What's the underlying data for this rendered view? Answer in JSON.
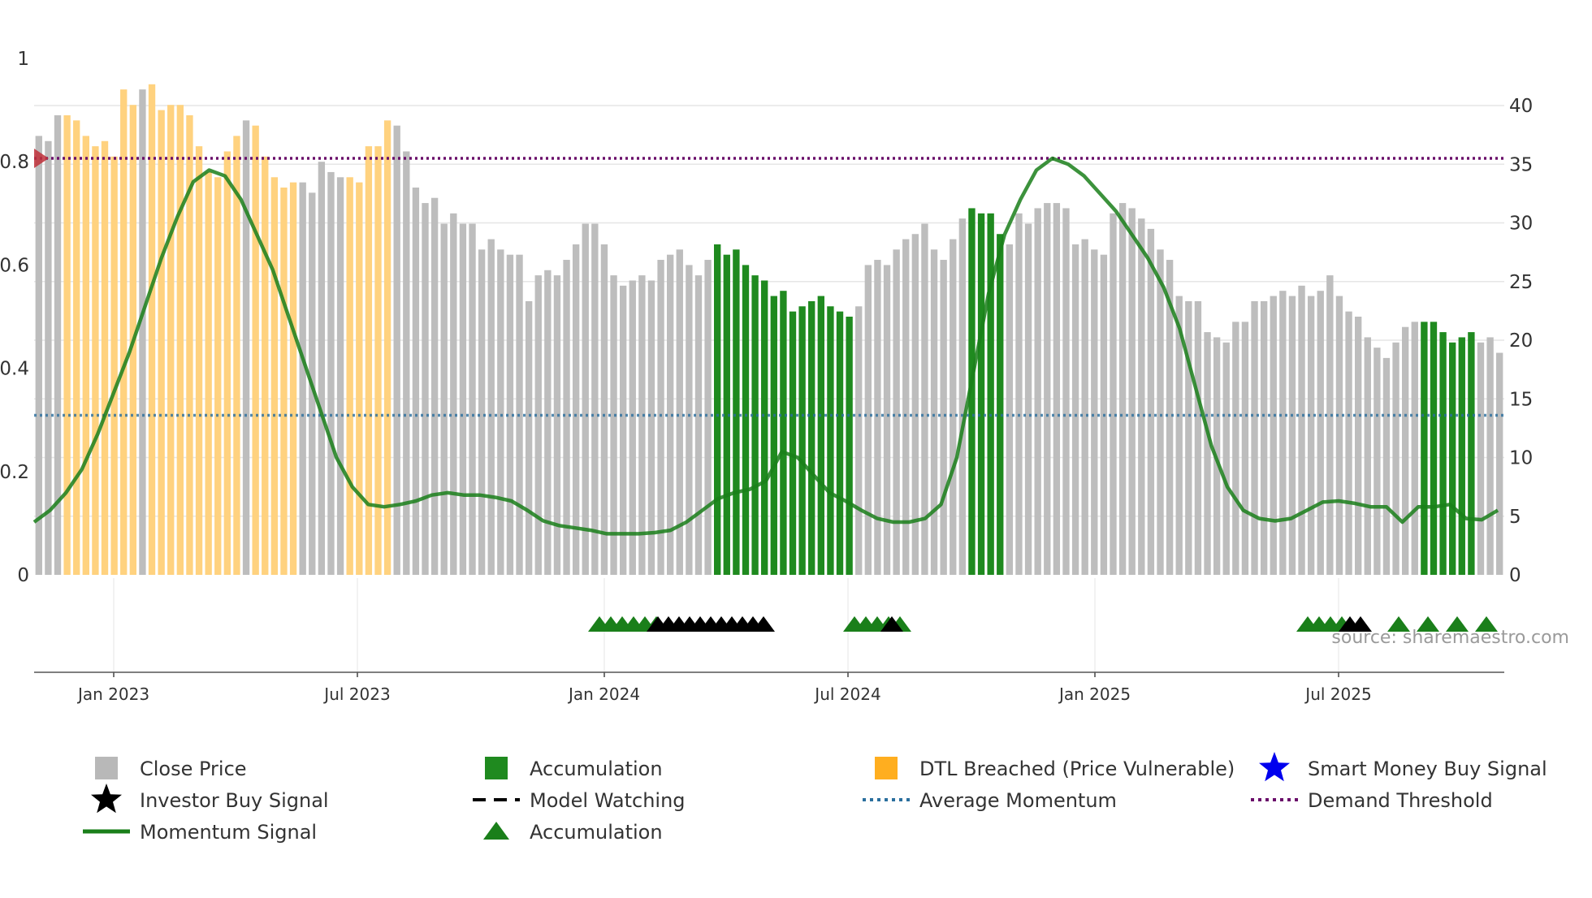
{
  "chart_data": {
    "type": "bar",
    "title": "",
    "source": "source: sharemaestro.com",
    "x_ticks": [
      "Jan 2023",
      "Jul 2023",
      "Jan 2024",
      "Jul 2024",
      "Jan 2025",
      "Jul 2025"
    ],
    "left_axis": {
      "range": [
        0,
        1
      ],
      "ticks": [
        "0",
        "0.2",
        "0.4",
        "0.6",
        "0.8",
        "1"
      ]
    },
    "right_axis": {
      "range": [
        0,
        40
      ],
      "ticks": [
        "0",
        "5",
        "10",
        "15",
        "20",
        "25",
        "30",
        "35",
        "40"
      ]
    },
    "demand_threshold": 35.5,
    "average_momentum": 13.6,
    "colors": {
      "close_price": "#bdbdbd",
      "accumulation": "#1f8a1f",
      "dtl_breached": "#ffd27f",
      "momentum": "#1a7f1a",
      "average_momentum": "#2a6f9e",
      "demand_threshold": "#6a0d6a",
      "investor_signal": "#000000",
      "smart_money": "#0000ee"
    },
    "price_bars": {
      "categories": "one bar per week, Nov 2022 – Oct 2025",
      "values": [
        0.85,
        0.84,
        0.89,
        0.89,
        0.88,
        0.85,
        0.83,
        0.84,
        0.81,
        0.94,
        0.91,
        0.94,
        0.95,
        0.9,
        0.91,
        0.91,
        0.89,
        0.83,
        0.78,
        0.77,
        0.82,
        0.85,
        0.88,
        0.87,
        0.81,
        0.77,
        0.75,
        0.76,
        0.76,
        0.74,
        0.8,
        0.78,
        0.77,
        0.77,
        0.76,
        0.83,
        0.83,
        0.88,
        0.87,
        0.82,
        0.75,
        0.72,
        0.73,
        0.68,
        0.7,
        0.68,
        0.68,
        0.63,
        0.65,
        0.63,
        0.62,
        0.62,
        0.53,
        0.58,
        0.59,
        0.58,
        0.61,
        0.64,
        0.68,
        0.68,
        0.64,
        0.58,
        0.56,
        0.57,
        0.58,
        0.57,
        0.61,
        0.62,
        0.63,
        0.6,
        0.58,
        0.61,
        0.64,
        0.62,
        0.63,
        0.6,
        0.58,
        0.57,
        0.54,
        0.55,
        0.51,
        0.52,
        0.53,
        0.54,
        0.52,
        0.51,
        0.5,
        0.52,
        0.6,
        0.61,
        0.6,
        0.63,
        0.65,
        0.66,
        0.68,
        0.63,
        0.61,
        0.65,
        0.69,
        0.71,
        0.7,
        0.7,
        0.66,
        0.64,
        0.7,
        0.68,
        0.71,
        0.72,
        0.72,
        0.71,
        0.64,
        0.65,
        0.63,
        0.62,
        0.7,
        0.72,
        0.71,
        0.69,
        0.67,
        0.63,
        0.61,
        0.54,
        0.53,
        0.53,
        0.47,
        0.46,
        0.45,
        0.49,
        0.49,
        0.53,
        0.53,
        0.54,
        0.55,
        0.54,
        0.56,
        0.54,
        0.55,
        0.58,
        0.54,
        0.51,
        0.5,
        0.46,
        0.44,
        0.42,
        0.45,
        0.48,
        0.49,
        0.49,
        0.49,
        0.47,
        0.45,
        0.46,
        0.47,
        0.45,
        0.46,
        0.43
      ],
      "categories_per_bar": "gggddddddddgddddddddddgdddddgggggdddddggggggggggggggggggggggggggggggggggaaaaaaaaaaaaaaaggggggggggggaaaaggggggggggggggggggggggggggggggggggggggggggggaaaaaaggggggaggaggagga"
    },
    "momentum_signal": {
      "values": [
        4.5,
        5.5,
        7,
        9,
        12,
        15.5,
        19,
        23,
        27,
        30.5,
        33.5,
        34.5,
        34,
        32,
        29,
        26,
        22,
        18,
        14,
        10,
        7.5,
        6,
        5.8,
        6,
        6.3,
        6.8,
        7,
        6.8,
        6.8,
        6.6,
        6.3,
        5.5,
        4.6,
        4.2,
        4,
        3.8,
        3.5,
        3.5,
        3.5,
        3.6,
        3.8,
        4.5,
        5.5,
        6.5,
        7,
        7.3,
        8,
        10.5,
        10,
        8.5,
        7,
        6.3,
        5.5,
        4.8,
        4.5,
        4.5,
        4.8,
        6,
        10,
        17,
        24,
        29,
        32,
        34.5,
        35.5,
        35,
        34,
        32.5,
        31,
        29,
        27,
        24.5,
        21,
        16,
        11,
        7.5,
        5.5,
        4.8,
        4.6,
        4.8,
        5.5,
        6.2,
        6.3,
        6.1,
        5.8,
        5.8,
        4.5,
        5.8,
        5.8,
        6,
        4.8,
        4.7,
        5.5
      ]
    },
    "markers": {
      "accumulation_triangles": [
        {
          "x": "Dec 2023",
          "count": 6,
          "color": "#1a7f1a"
        },
        {
          "x": "Jul 2024",
          "count": 5,
          "color": "#1a7f1a"
        },
        {
          "x": "Jun 2025",
          "count": 4,
          "color": "#1a7f1a"
        },
        {
          "x": "Aug 2025",
          "count": 4,
          "color": "#1a7f1a"
        }
      ],
      "watching_triangles": [
        {
          "x": "Jan–Apr 2024",
          "count": 11,
          "color": "#000000"
        },
        {
          "x": "Jul 2024",
          "count": 1,
          "color": "#000000"
        },
        {
          "x": "Jul 2025",
          "count": 2,
          "color": "#000000"
        }
      ]
    }
  },
  "legend": [
    {
      "label": "Close Price",
      "symbol": "square",
      "color": "#b8b8b8"
    },
    {
      "label": "Accumulation",
      "symbol": "square",
      "color": "#1f8a1f"
    },
    {
      "label": "DTL Breached (Price Vulnerable)",
      "symbol": "square",
      "color": "#ffae1f"
    },
    {
      "label": "Smart Money Buy Signal",
      "symbol": "star",
      "color": "#0000ee"
    },
    {
      "label": "Investor Buy Signal",
      "symbol": "star",
      "color": "#000000"
    },
    {
      "label": "Model Watching",
      "symbol": "dash",
      "color": "#000000"
    },
    {
      "label": "Average Momentum",
      "symbol": "dot",
      "color": "#2a6f9e"
    },
    {
      "label": "Demand Threshold",
      "symbol": "dot",
      "color": "#6a0d6a"
    },
    {
      "label": "Momentum Signal",
      "symbol": "line",
      "color": "#1a7f1a"
    },
    {
      "label": "Accumulation",
      "symbol": "triangle",
      "color": "#1a7f1a"
    }
  ]
}
